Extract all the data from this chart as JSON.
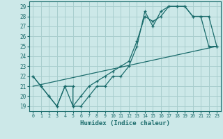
{
  "xlabel": "Humidex (Indice chaleur)",
  "background_color": "#cce8e8",
  "grid_color": "#a8cece",
  "line_color": "#1a6b6b",
  "xlim": [
    -0.5,
    23.5
  ],
  "ylim": [
    18.5,
    29.5
  ],
  "xticks": [
    0,
    1,
    2,
    3,
    4,
    5,
    6,
    7,
    8,
    9,
    10,
    11,
    12,
    13,
    14,
    15,
    16,
    17,
    18,
    19,
    20,
    21,
    22,
    23
  ],
  "yticks": [
    19,
    20,
    21,
    22,
    23,
    24,
    25,
    26,
    27,
    28,
    29
  ],
  "series1_x": [
    0,
    1,
    2,
    3,
    4,
    5,
    5,
    6,
    7,
    8,
    9,
    10,
    11,
    12,
    13,
    14,
    15,
    16,
    17,
    18,
    19,
    20,
    21,
    22,
    23
  ],
  "series1_y": [
    22,
    21,
    20,
    19,
    21,
    21,
    19,
    19,
    20,
    21,
    21,
    22,
    22,
    23,
    25,
    28.5,
    27,
    28.5,
    29,
    29,
    29,
    28,
    28,
    28,
    25
  ],
  "series2_x": [
    0,
    1,
    2,
    3,
    4,
    5,
    6,
    7,
    8,
    9,
    10,
    11,
    12,
    13,
    14,
    15,
    16,
    17,
    18,
    19,
    20,
    21,
    22,
    23
  ],
  "series2_y": [
    22,
    21,
    20,
    19,
    21,
    19,
    20,
    21,
    21.5,
    22,
    22.5,
    23,
    23.5,
    25.5,
    28,
    27.5,
    28,
    29,
    29,
    29,
    28,
    28,
    25,
    25
  ],
  "series3_x": [
    0,
    23
  ],
  "series3_y": [
    21,
    25
  ]
}
